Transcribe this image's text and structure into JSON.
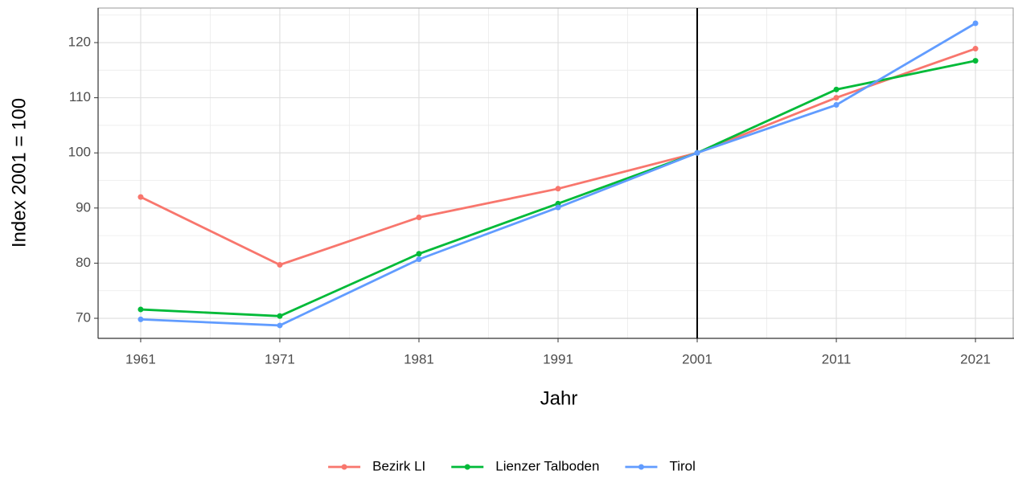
{
  "chart_data": {
    "type": "line",
    "x_label": "Jahr",
    "y_label": "Index 2001 = 100",
    "x": [
      1961,
      1971,
      1981,
      1991,
      2001,
      2011,
      2021
    ],
    "series": [
      {
        "name": "Bezirk LI",
        "color": "#F8766D",
        "values": [
          92.0,
          79.7,
          88.3,
          93.5,
          100,
          110.0,
          118.9
        ]
      },
      {
        "name": "Lienzer Talboden",
        "color": "#00BA38",
        "values": [
          71.6,
          70.4,
          81.7,
          90.8,
          100,
          111.5,
          116.7
        ]
      },
      {
        "name": "Tirol",
        "color": "#619CFF",
        "values": [
          69.8,
          68.7,
          80.7,
          90.1,
          100,
          108.7,
          123.5
        ]
      }
    ],
    "xlim": [
      1957.94,
      2023.77
    ],
    "xticks": [
      1961,
      1971,
      1981,
      1991,
      2001,
      2011,
      2021
    ],
    "ylim": [
      66.36,
      126.27
    ],
    "yticks": [
      70,
      80,
      90,
      100,
      110,
      120
    ],
    "vline": 2001,
    "grid": true,
    "legend": "bottom"
  }
}
